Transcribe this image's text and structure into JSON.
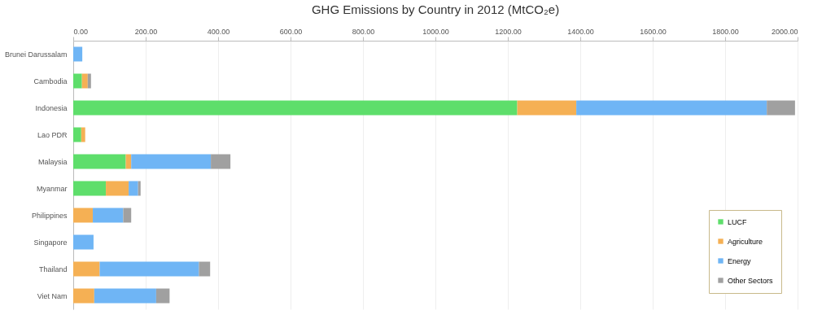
{
  "chart_data": {
    "type": "bar",
    "orientation": "horizontal",
    "stacked": true,
    "title": "GHG Emissions by Country in 2012 (MtCO₂e)",
    "categories": [
      "Brunei Darussalam",
      "Cambodia",
      "Indonesia",
      "Lao PDR",
      "Malaysia",
      "Myanmar",
      "Philippines",
      "Singapore",
      "Thailand",
      "Viet Nam"
    ],
    "series": [
      {
        "name": "LUCF",
        "color": "#5ede6b",
        "values": [
          null,
          24,
          1226,
          22,
          145,
          90,
          null,
          null,
          null,
          null
        ]
      },
      {
        "name": "Agriculture",
        "color": "#f5b054",
        "values": [
          null,
          16,
          163,
          11,
          15,
          63,
          54,
          null,
          73,
          58
        ]
      },
      {
        "name": "Energy",
        "color": "#6fb5f5",
        "values": [
          25,
          null,
          526,
          null,
          220,
          26,
          84,
          56,
          274,
          171
        ]
      },
      {
        "name": "Other Sectors",
        "color": "#a0a0a0",
        "values": [
          null,
          9,
          78,
          null,
          54,
          7,
          22,
          null,
          31,
          37
        ]
      }
    ],
    "xlim": [
      0,
      2000
    ],
    "xticks": [
      {
        "value": 0,
        "label": "0.00"
      },
      {
        "value": 200,
        "label": "200.00"
      },
      {
        "value": 400,
        "label": "400.00"
      },
      {
        "value": 600,
        "label": "600.00"
      },
      {
        "value": 800,
        "label": "800.00"
      },
      {
        "value": 1000,
        "label": "1000.00"
      },
      {
        "value": 1200,
        "label": "1200.00"
      },
      {
        "value": 1400,
        "label": "1400.00"
      },
      {
        "value": 1600,
        "label": "1600.00"
      },
      {
        "value": 1800,
        "label": "1800.00"
      },
      {
        "value": 2000,
        "label": "2000.00"
      }
    ],
    "grid": "x",
    "legend": "bottom right"
  }
}
